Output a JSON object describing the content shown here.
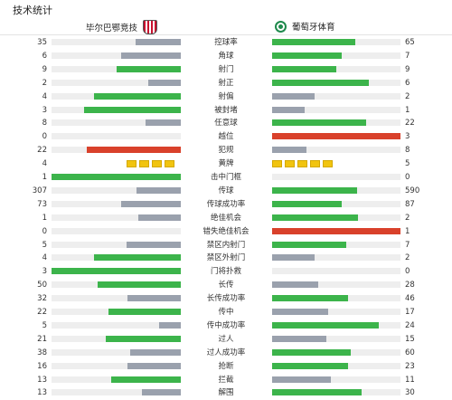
{
  "page": {
    "title": "技术统计"
  },
  "teams": {
    "home": "毕尔巴鄂竞技",
    "away": "葡萄牙体育"
  },
  "colors": {
    "bar": "#9aa1ad",
    "win": "#3cb44b",
    "red": "#d9412b",
    "track": "#eeeeee",
    "card": "#f1c40f"
  },
  "stats": [
    {
      "label": "控球率",
      "home": "35",
      "away": "65",
      "home_level": 0.35,
      "away_level": 0.65,
      "home_color": "gray",
      "away_color": "green"
    },
    {
      "label": "角球",
      "home": "6",
      "away": "7",
      "home_level": 0.46,
      "away_level": 0.54,
      "home_color": "gray",
      "away_color": "green"
    },
    {
      "label": "射门",
      "home": "9",
      "away": "9",
      "home_level": 0.5,
      "away_level": 0.5,
      "home_color": "green",
      "away_color": "green"
    },
    {
      "label": "射正",
      "home": "2",
      "away": "6",
      "home_level": 0.25,
      "away_level": 0.75,
      "home_color": "gray",
      "away_color": "green"
    },
    {
      "label": "射偏",
      "home": "4",
      "away": "2",
      "home_level": 0.67,
      "away_level": 0.33,
      "home_color": "green",
      "away_color": "gray"
    },
    {
      "label": "被封堵",
      "home": "3",
      "away": "1",
      "home_level": 0.75,
      "away_level": 0.25,
      "home_color": "green",
      "away_color": "gray"
    },
    {
      "label": "任意球",
      "home": "8",
      "away": "22",
      "home_level": 0.27,
      "away_level": 0.73,
      "home_color": "gray",
      "away_color": "green"
    },
    {
      "label": "越位",
      "home": "0",
      "away": "3",
      "home_level": 0,
      "away_level": 1,
      "home_color": "gray",
      "away_color": "red"
    },
    {
      "label": "犯规",
      "home": "22",
      "away": "8",
      "home_level": 0.73,
      "away_level": 0.27,
      "home_color": "red",
      "away_color": "gray"
    },
    {
      "label": "黄牌",
      "home": "4",
      "away": "5",
      "home_cards": 4,
      "away_cards": 5
    },
    {
      "label": "击中门框",
      "home": "1",
      "away": "0",
      "home_level": 1,
      "away_level": 0,
      "home_color": "green",
      "away_color": "gray"
    },
    {
      "label": "传球",
      "home": "307",
      "away": "590",
      "home_level": 0.34,
      "away_level": 0.66,
      "home_color": "gray",
      "away_color": "green"
    },
    {
      "label": "传球成功率",
      "home": "73",
      "away": "87",
      "home_level": 0.46,
      "away_level": 0.54,
      "home_color": "gray",
      "away_color": "green"
    },
    {
      "label": "绝佳机会",
      "home": "1",
      "away": "2",
      "home_level": 0.33,
      "away_level": 0.67,
      "home_color": "gray",
      "away_color": "green"
    },
    {
      "label": "错失绝佳机会",
      "home": "0",
      "away": "1",
      "home_level": 0,
      "away_level": 1,
      "home_color": "gray",
      "away_color": "red"
    },
    {
      "label": "禁区内射门",
      "home": "5",
      "away": "7",
      "home_level": 0.42,
      "away_level": 0.58,
      "home_color": "gray",
      "away_color": "green"
    },
    {
      "label": "禁区外射门",
      "home": "4",
      "away": "2",
      "home_level": 0.67,
      "away_level": 0.33,
      "home_color": "green",
      "away_color": "gray"
    },
    {
      "label": "门将扑救",
      "home": "3",
      "away": "0",
      "home_level": 1,
      "away_level": 0,
      "home_color": "green",
      "away_color": "gray"
    },
    {
      "label": "长传",
      "home": "50",
      "away": "28",
      "home_level": 0.64,
      "away_level": 0.36,
      "home_color": "green",
      "away_color": "gray"
    },
    {
      "label": "长传成功率",
      "home": "32",
      "away": "46",
      "home_level": 0.41,
      "away_level": 0.59,
      "home_color": "gray",
      "away_color": "green"
    },
    {
      "label": "传中",
      "home": "22",
      "away": "17",
      "home_level": 0.56,
      "away_level": 0.44,
      "home_color": "green",
      "away_color": "gray"
    },
    {
      "label": "传中成功率",
      "home": "5",
      "away": "24",
      "home_level": 0.17,
      "away_level": 0.83,
      "home_color": "gray",
      "away_color": "green"
    },
    {
      "label": "过人",
      "home": "21",
      "away": "15",
      "home_level": 0.58,
      "away_level": 0.42,
      "home_color": "green",
      "away_color": "gray"
    },
    {
      "label": "过人成功率",
      "home": "38",
      "away": "60",
      "home_level": 0.39,
      "away_level": 0.61,
      "home_color": "gray",
      "away_color": "green"
    },
    {
      "label": "抢断",
      "home": "16",
      "away": "23",
      "home_level": 0.41,
      "away_level": 0.59,
      "home_color": "gray",
      "away_color": "green"
    },
    {
      "label": "拦截",
      "home": "13",
      "away": "11",
      "home_level": 0.54,
      "away_level": 0.46,
      "home_color": "green",
      "away_color": "gray"
    },
    {
      "label": "解围",
      "home": "13",
      "away": "30",
      "home_level": 0.3,
      "away_level": 0.7,
      "home_color": "gray",
      "away_color": "green"
    }
  ]
}
